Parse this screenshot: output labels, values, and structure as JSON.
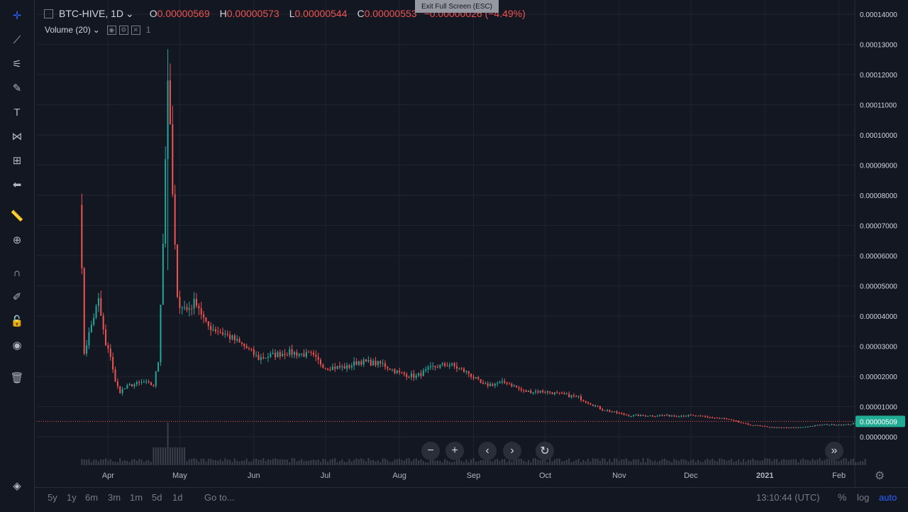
{
  "header": {
    "symbol": "BTC-HIVE, 1D",
    "o_label": "O",
    "o_value": "0.00000569",
    "h_label": "H",
    "h_value": "0.00000573",
    "l_label": "L",
    "l_value": "0.00000544",
    "c_label": "C",
    "c_value": "0.00000553",
    "change": "−0.00000026 (−4.49%)",
    "volume_label": "Volume (20)",
    "volume_value": "1",
    "exit_fullscreen": "Exit Full Screen (ESC)"
  },
  "toolbar": {
    "icons": [
      "crosshair-icon",
      "trend-line-icon",
      "fib-retracement-icon",
      "brush-icon",
      "text-icon",
      "pattern-icon",
      "prediction-icon",
      "back-arrow-icon",
      "ruler-icon",
      "zoom-in-icon",
      "magnet-icon",
      "pencil-lock-icon",
      "lock-icon",
      "eye-icon",
      "trash-icon",
      "layers-icon"
    ]
  },
  "bottom": {
    "ranges": [
      "5y",
      "1y",
      "6m",
      "3m",
      "1m",
      "5d",
      "1d"
    ],
    "goto": "Go to...",
    "clock": "13:10:44 (UTC)",
    "percent": "%",
    "log": "log",
    "auto": "auto"
  },
  "colors": {
    "up": "#26a69a",
    "down": "#ef5350",
    "background": "#131722",
    "grid": "#1f2430",
    "price_line": "#ef5350",
    "last_price_bg": "#22ab94"
  },
  "chart_data": {
    "type": "candlestick",
    "title": "BTC-HIVE, 1D",
    "x_ticks": [
      "Apr",
      "May",
      "Jun",
      "Jul",
      "Aug",
      "Sep",
      "Oct",
      "Nov",
      "Dec",
      "2021",
      "Feb"
    ],
    "y_ticks": [
      "0.00000000",
      "0.00001000",
      "0.00002000",
      "0.00003000",
      "0.00004000",
      "0.00005000",
      "0.00006000",
      "0.00007000",
      "0.00008000",
      "0.00009000",
      "0.00010000",
      "0.00011000",
      "0.00012000",
      "0.00013000",
      "0.00014000"
    ],
    "ylim": [
      0,
      0.00014
    ],
    "last_price": "0.00000509",
    "last_price_value": 5.09e-06,
    "start_date": "2020-03-20",
    "grid": true,
    "price_path": [
      [
        "2020-03-20",
        8e-05,
        "spike"
      ],
      [
        "2020-03-22",
        2.8e-05
      ],
      [
        "2020-03-26",
        4e-05
      ],
      [
        "2020-03-28",
        4.5e-05
      ],
      [
        "2020-03-31",
        3e-05
      ],
      [
        "2020-04-02",
        2.7e-05
      ],
      [
        "2020-04-04",
        1.8e-05
      ],
      [
        "2020-04-06",
        1.5e-05
      ],
      [
        "2020-04-10",
        1.7e-05
      ],
      [
        "2020-04-16",
        1.8e-05
      ],
      [
        "2020-04-20",
        1.7e-05
      ],
      [
        "2020-04-22",
        2.5e-05
      ],
      [
        "2020-04-24",
        6.5e-05
      ],
      [
        "2020-04-26",
        0.00012,
        "spike"
      ],
      [
        "2020-04-28",
        8e-05
      ],
      [
        "2020-04-30",
        4.5e-05
      ],
      [
        "2020-05-04",
        4.2e-05
      ],
      [
        "2020-05-08",
        4.5e-05
      ],
      [
        "2020-05-12",
        3.7e-05
      ],
      [
        "2020-05-20",
        3.4e-05
      ],
      [
        "2020-05-28",
        3e-05
      ],
      [
        "2020-06-03",
        2.6e-05
      ],
      [
        "2020-06-15",
        2.8e-05
      ],
      [
        "2020-06-25",
        2.7e-05
      ],
      [
        "2020-07-01",
        2.3e-05
      ],
      [
        "2020-07-10",
        2.3e-05
      ],
      [
        "2020-07-15",
        2.5e-05
      ],
      [
        "2020-07-25",
        2.4e-05
      ],
      [
        "2020-08-01",
        2.1e-05
      ],
      [
        "2020-08-08",
        2e-05
      ],
      [
        "2020-08-15",
        2.3e-05
      ],
      [
        "2020-08-22",
        2.4e-05
      ],
      [
        "2020-08-30",
        2.1e-05
      ],
      [
        "2020-09-05",
        1.7e-05
      ],
      [
        "2020-09-15",
        1.8e-05
      ],
      [
        "2020-09-22",
        1.5e-05
      ],
      [
        "2020-10-01",
        1.5e-05
      ],
      [
        "2020-10-15",
        1.3e-05
      ],
      [
        "2020-10-25",
        9e-06
      ],
      [
        "2020-11-05",
        7e-06
      ],
      [
        "2020-11-20",
        7e-06
      ],
      [
        "2020-12-01",
        7e-06
      ],
      [
        "2020-12-15",
        6e-06
      ],
      [
        "2020-12-25",
        4e-06
      ],
      [
        "2021-01-05",
        3e-06
      ],
      [
        "2021-01-15",
        3e-06
      ],
      [
        "2021-01-25",
        4e-06
      ],
      [
        "2021-02-05",
        4e-06
      ],
      [
        "2021-02-12",
        5.1e-06
      ]
    ]
  }
}
